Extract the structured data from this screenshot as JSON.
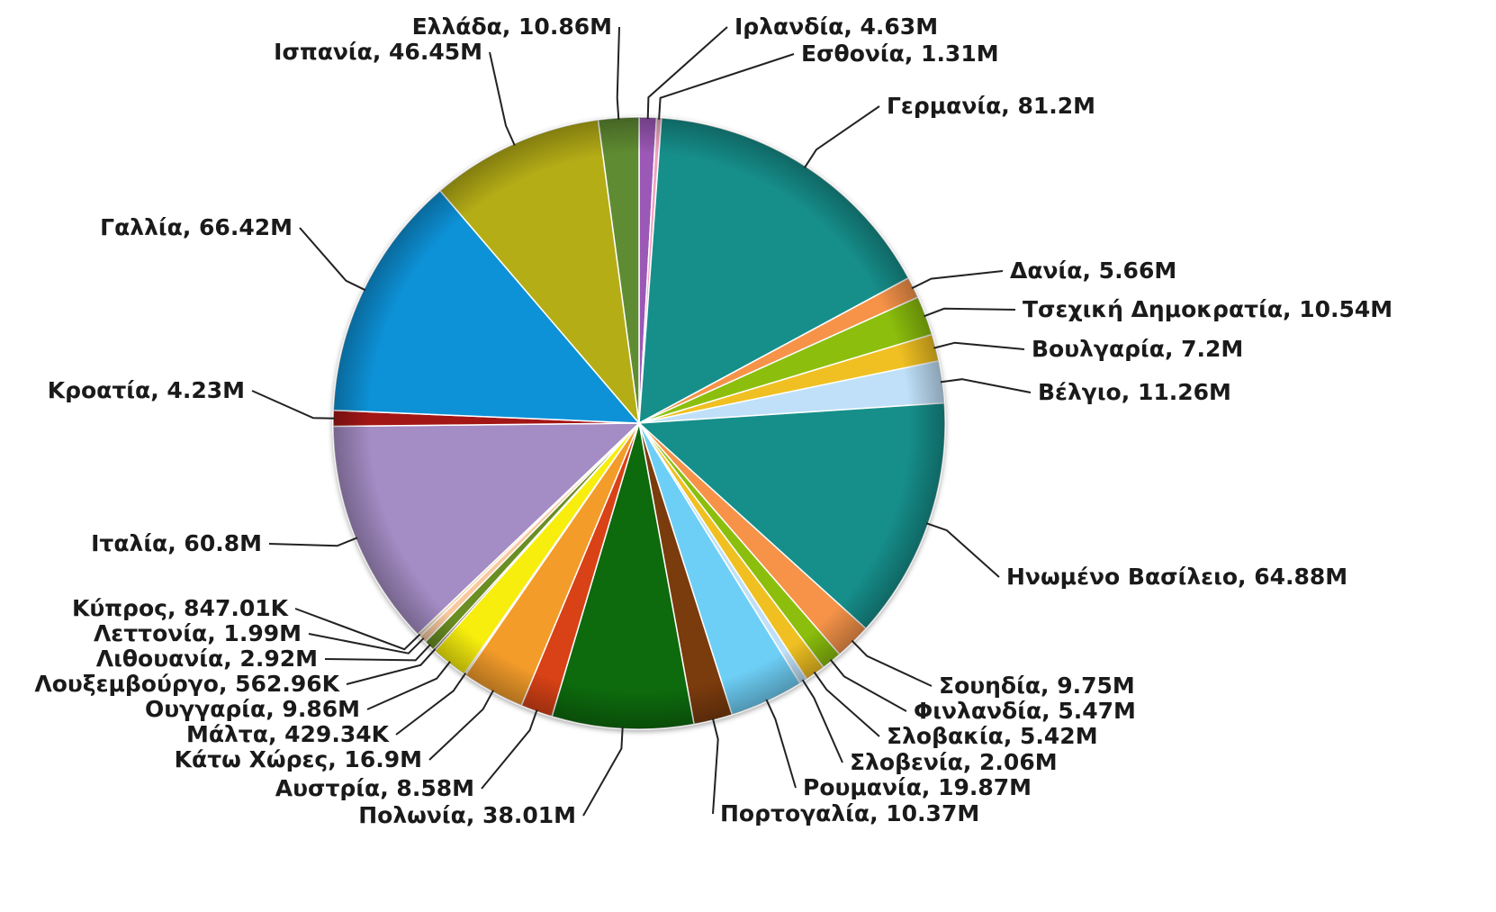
{
  "chart_data": {
    "type": "pie",
    "title": "",
    "legend": "none",
    "slices": [
      {
        "label": "Ιρλανδία, 4.63M",
        "name": "Ιρλανδία",
        "value": 4.63,
        "color": "#9b59b6"
      },
      {
        "label": "Εσθονία, 1.31M",
        "name": "Εσθονία",
        "value": 1.31,
        "color": "#f2a2c0"
      },
      {
        "label": "Γερμανία, 81.2M",
        "name": "Γερμανία",
        "value": 81.2,
        "color": "#128f8b"
      },
      {
        "label": "Δανία, 5.66M",
        "name": "Δανία",
        "value": 5.66,
        "color": "#f6934a"
      },
      {
        "label": "Τσεχική Δημοκρατία, 10.54M",
        "name": "Τσεχική Δημοκρατία",
        "value": 10.54,
        "color": "#8cbf0f"
      },
      {
        "label": "Βουλγαρία, 7.2M",
        "name": "Βουλγαρία",
        "value": 7.2,
        "color": "#f0c020"
      },
      {
        "label": "Βέλγιο, 11.26M",
        "name": "Βέλγιο",
        "value": 11.26,
        "color": "#bfe0f8"
      },
      {
        "label": "Ηνωμένο Βασίλειο, 64.88M",
        "name": "Ηνωμένο Βασίλειο",
        "value": 64.88,
        "color": "#128f8b"
      },
      {
        "label": "Σουηδία, 9.75M",
        "name": "Σουηδία",
        "value": 9.75,
        "color": "#f6934a"
      },
      {
        "label": "Φινλανδία, 5.47M",
        "name": "Φινλανδία",
        "value": 5.47,
        "color": "#8cbf0f"
      },
      {
        "label": "Σλοβακία, 5.42M",
        "name": "Σλοβακία",
        "value": 5.42,
        "color": "#f0c020"
      },
      {
        "label": "Σλοβενία, 2.06M",
        "name": "Σλοβενία",
        "value": 2.06,
        "color": "#bfe0f8"
      },
      {
        "label": "Ρουμανία, 19.87M",
        "name": "Ρουμανία",
        "value": 19.87,
        "color": "#6ecff6"
      },
      {
        "label": "Πορτογαλία, 10.37M",
        "name": "Πορτογαλία",
        "value": 10.37,
        "color": "#7a3b10"
      },
      {
        "label": "Πολωνία, 38.01M",
        "name": "Πολωνία",
        "value": 38.01,
        "color": "#0f6b0f"
      },
      {
        "label": "Αυστρία, 8.58M",
        "name": "Αυστρία",
        "value": 8.58,
        "color": "#d84315"
      },
      {
        "label": "Κάτω Χώρες, 16.9M",
        "name": "Κάτω Χώρες",
        "value": 16.9,
        "color": "#f39c2b"
      },
      {
        "label": "Μάλτα, 429.34K",
        "name": "Μάλτα",
        "value": 0.42934,
        "color": "#f5a623"
      },
      {
        "label": "Ουγγαρία, 9.86M",
        "name": "Ουγγαρία",
        "value": 9.86,
        "color": "#f7ee0e"
      },
      {
        "label": "Λουξεμβούργο, 562.96K",
        "name": "Λουξεμβούργο",
        "value": 0.56296,
        "color": "#5b2e0e"
      },
      {
        "label": "Λιθουανία, 2.92M",
        "name": "Λιθουανία",
        "value": 2.92,
        "color": "#6b8e23"
      },
      {
        "label": "Λεττονία, 1.99M",
        "name": "Λεττονία",
        "value": 1.99,
        "color": "#f8c9a0"
      },
      {
        "label": "Κύπρος, 847.01K",
        "name": "Κύπρος",
        "value": 0.84701,
        "color": "#e9d3a8"
      },
      {
        "label": "Ιταλία, 60.8M",
        "name": "Ιταλία",
        "value": 60.8,
        "color": "#a48cc4"
      },
      {
        "label": "Κροατία, 4.23M",
        "name": "Κροατία",
        "value": 4.23,
        "color": "#a31515"
      },
      {
        "label": "Γαλλία, 66.42M",
        "name": "Γαλλία",
        "value": 66.42,
        "color": "#1092d8"
      },
      {
        "label": "Ισπανία, 46.45M",
        "name": "Ισπανία",
        "value": 46.45,
        "color": "#b5ad14"
      },
      {
        "label": "Ελλάδα, 10.86M",
        "name": "Ελλάδα",
        "value": 10.86,
        "color": "#5e8c31"
      }
    ]
  }
}
